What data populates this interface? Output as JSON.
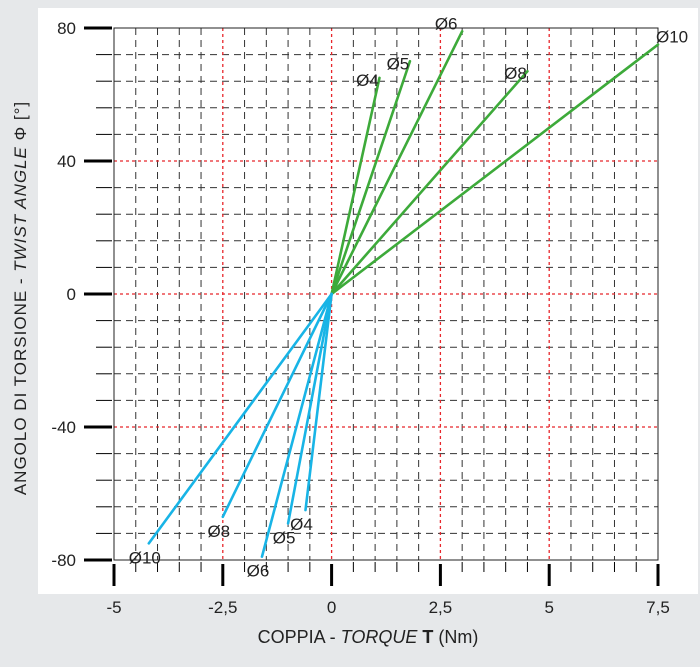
{
  "colors": {
    "background": "#e6e8ea",
    "panel": "#ffffff",
    "grid_dashed": "#333333",
    "grid_major": "#e8262b",
    "positive_series": "#3daa3a",
    "negative_series": "#18b4e6"
  },
  "chart_data": {
    "type": "line",
    "title": "",
    "xlabel": {
      "prefix": "COPPIA - ",
      "italic": "TORQUE",
      "bold": " T",
      "suffix": " (Nm)"
    },
    "ylabel": {
      "prefix": "ANGOLO DI TORSIONE - ",
      "italic": "TWIST ANGLE",
      "suffix": " Φ [°]"
    },
    "xlim": [
      -5,
      7.5
    ],
    "ylim": [
      -80,
      80
    ],
    "x_ticks": [
      {
        "value": -5,
        "label": "-5"
      },
      {
        "value": -2.5,
        "label": "-2,5"
      },
      {
        "value": 0,
        "label": "0"
      },
      {
        "value": 2.5,
        "label": "2,5"
      },
      {
        "value": 5,
        "label": "5"
      },
      {
        "value": 7.5,
        "label": "7,5"
      }
    ],
    "y_ticks": [
      {
        "value": 80,
        "label": "80"
      },
      {
        "value": 40,
        "label": "40"
      },
      {
        "value": 0,
        "label": "0"
      },
      {
        "value": -40,
        "label": "-40"
      },
      {
        "value": -80,
        "label": "-80"
      }
    ],
    "x_minor_step": 0.5,
    "y_minor_step": 8,
    "grid": true,
    "series": [
      {
        "name": "Ø4",
        "sign": "positive",
        "points": [
          [
            0,
            0
          ],
          [
            1.1,
            65
          ]
        ]
      },
      {
        "name": "Ø5",
        "sign": "positive",
        "points": [
          [
            0,
            0
          ],
          [
            1.8,
            70
          ]
        ]
      },
      {
        "name": "Ø6",
        "sign": "positive",
        "points": [
          [
            0,
            0
          ],
          [
            3.0,
            79
          ]
        ]
      },
      {
        "name": "Ø8",
        "sign": "positive",
        "points": [
          [
            0,
            0
          ],
          [
            4.5,
            67
          ]
        ]
      },
      {
        "name": "Ø10",
        "sign": "positive",
        "points": [
          [
            0,
            0
          ],
          [
            7.5,
            75
          ]
        ]
      },
      {
        "name": "Ø4",
        "sign": "negative",
        "points": [
          [
            0,
            0
          ],
          [
            -0.6,
            -65
          ]
        ]
      },
      {
        "name": "Ø5",
        "sign": "negative",
        "points": [
          [
            0,
            0
          ],
          [
            -1.0,
            -69
          ]
        ]
      },
      {
        "name": "Ø6",
        "sign": "negative",
        "points": [
          [
            0,
            0
          ],
          [
            -1.6,
            -79
          ]
        ]
      },
      {
        "name": "Ø8",
        "sign": "negative",
        "points": [
          [
            0,
            0
          ],
          [
            -2.5,
            -67
          ]
        ]
      },
      {
        "name": "Ø10",
        "sign": "negative",
        "points": [
          [
            0,
            0
          ],
          [
            -4.2,
            -75
          ]
        ]
      }
    ]
  }
}
